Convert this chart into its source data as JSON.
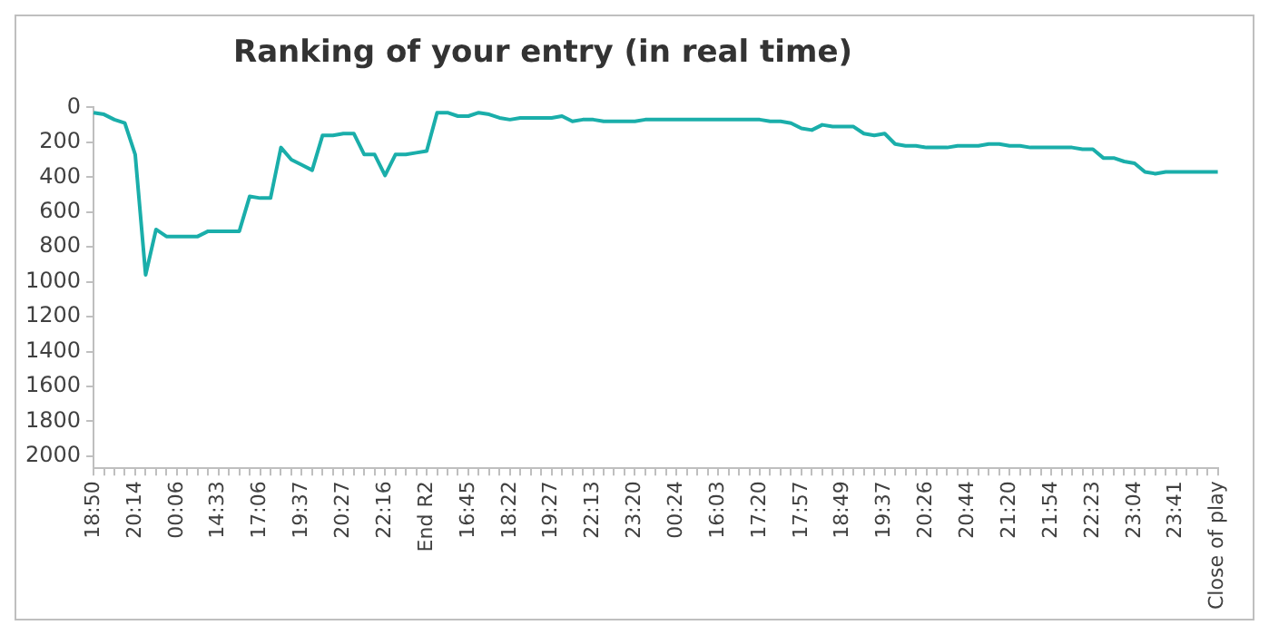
{
  "chart_data": {
    "type": "line",
    "title": "Ranking of your entry (in real time)",
    "categories": [
      "18:50",
      null,
      null,
      null,
      "20:14",
      null,
      null,
      null,
      "00:06",
      null,
      null,
      null,
      "14:33",
      null,
      null,
      null,
      "17:06",
      null,
      null,
      null,
      "19:37",
      null,
      null,
      null,
      "20:27",
      null,
      null,
      null,
      "22:16",
      null,
      null,
      null,
      "End R2",
      null,
      null,
      null,
      "16:45",
      null,
      null,
      null,
      "18:22",
      null,
      null,
      null,
      "19:27",
      null,
      null,
      null,
      "22:13",
      null,
      null,
      null,
      "23:20",
      null,
      null,
      null,
      "00:24",
      null,
      null,
      null,
      "16:03",
      null,
      null,
      null,
      "17:20",
      null,
      null,
      null,
      "17:57",
      null,
      null,
      null,
      "18:49",
      null,
      null,
      null,
      "19:37",
      null,
      null,
      null,
      "20:26",
      null,
      null,
      null,
      "20:44",
      null,
      null,
      null,
      "21:20",
      null,
      null,
      null,
      "21:54",
      null,
      null,
      null,
      "22:23",
      null,
      null,
      null,
      "23:04",
      null,
      null,
      null,
      "23:41",
      null,
      null,
      null,
      "Close of play"
    ],
    "series": [
      {
        "color": "#1aaeaa",
        "values": [
          30,
          40,
          70,
          90,
          270,
          960,
          700,
          740,
          740,
          740,
          740,
          710,
          710,
          710,
          710,
          510,
          520,
          520,
          230,
          300,
          330,
          360,
          160,
          160,
          150,
          150,
          270,
          270,
          390,
          270,
          270,
          260,
          250,
          30,
          30,
          50,
          50,
          30,
          40,
          60,
          70,
          60,
          60,
          60,
          60,
          50,
          80,
          70,
          70,
          80,
          80,
          80,
          80,
          70,
          70,
          70,
          70,
          70,
          70,
          70,
          70,
          70,
          70,
          70,
          70,
          80,
          80,
          90,
          120,
          130,
          100,
          110,
          110,
          110,
          150,
          160,
          150,
          210,
          220,
          220,
          230,
          230,
          230,
          220,
          220,
          220,
          210,
          210,
          220,
          220,
          230,
          230,
          230,
          230,
          230,
          240,
          240,
          290,
          290,
          310,
          320,
          370,
          380,
          370,
          370,
          370,
          370,
          370,
          370
        ]
      }
    ],
    "ylim": [
      2070,
      0
    ],
    "yticks": [
      0,
      200,
      400,
      600,
      800,
      1000,
      1200,
      1400,
      1600,
      1800,
      2000
    ],
    "grid": false,
    "legend": false,
    "marker": "none",
    "line_style": "solid"
  }
}
